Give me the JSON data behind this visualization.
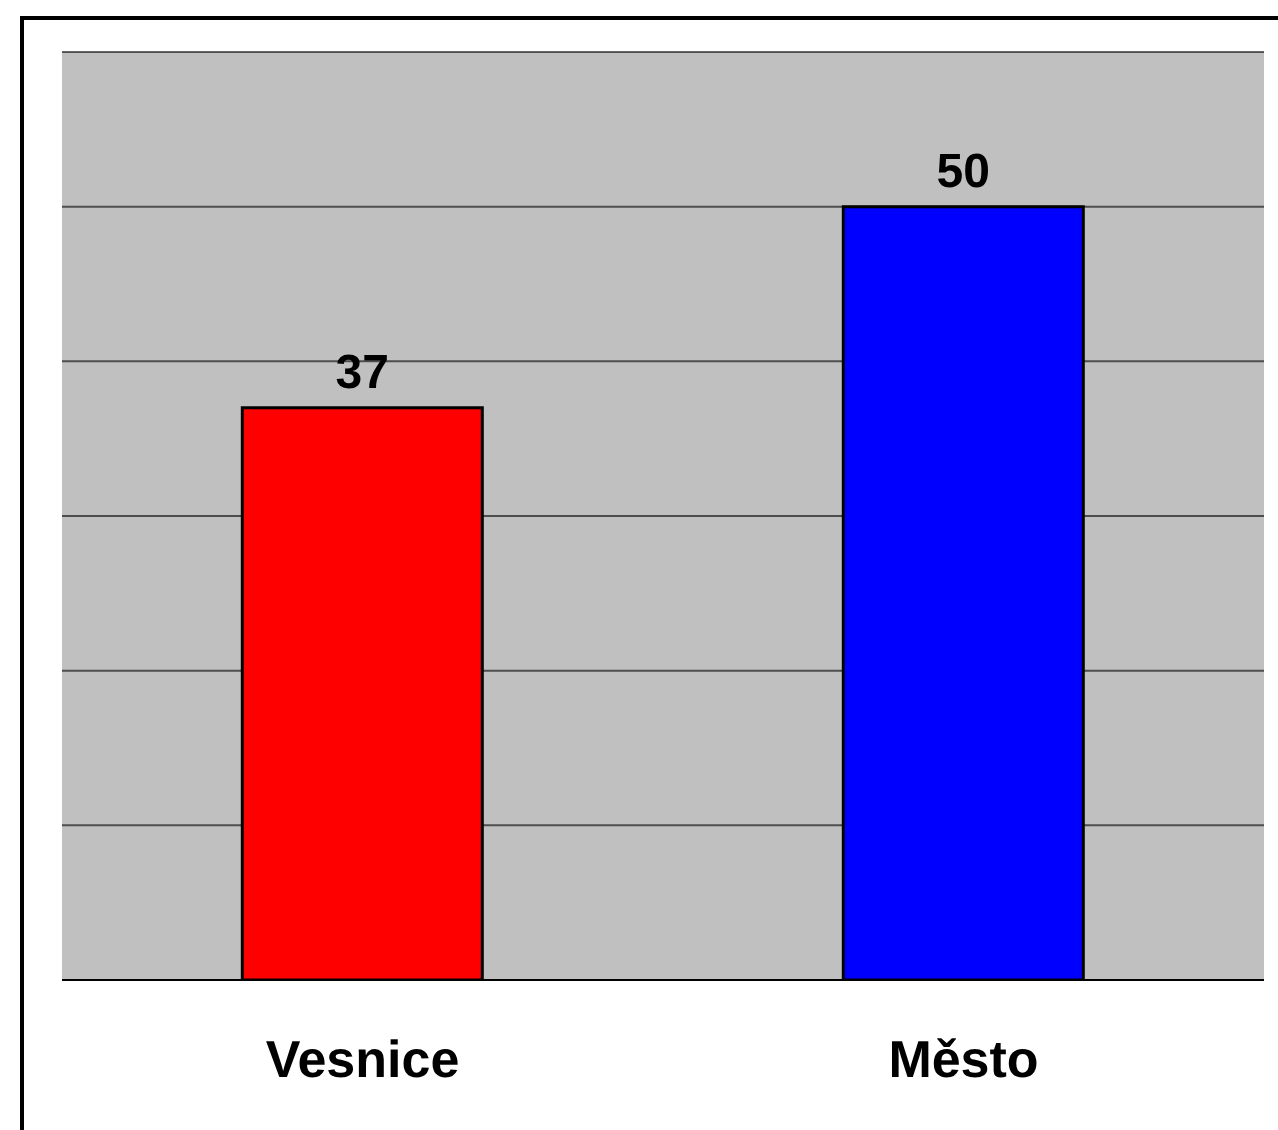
{
  "chart_data": {
    "type": "bar",
    "categories": [
      "Vesnice",
      "Město"
    ],
    "values": [
      37,
      50
    ],
    "colors": [
      "#ff0000",
      "#0000ff"
    ],
    "ylim": [
      0,
      60
    ],
    "yticks": [
      {
        "value": 0,
        "label": null
      },
      {
        "value": 10,
        "label": null
      },
      {
        "value": 20,
        "label": null
      },
      {
        "value": 30,
        "label": null
      },
      {
        "value": 40,
        "label": null
      },
      {
        "value": 50,
        "label": null
      },
      {
        "value": 60,
        "label": null
      }
    ],
    "grid": "y",
    "data_labels": true,
    "tick_labels": "x"
  }
}
